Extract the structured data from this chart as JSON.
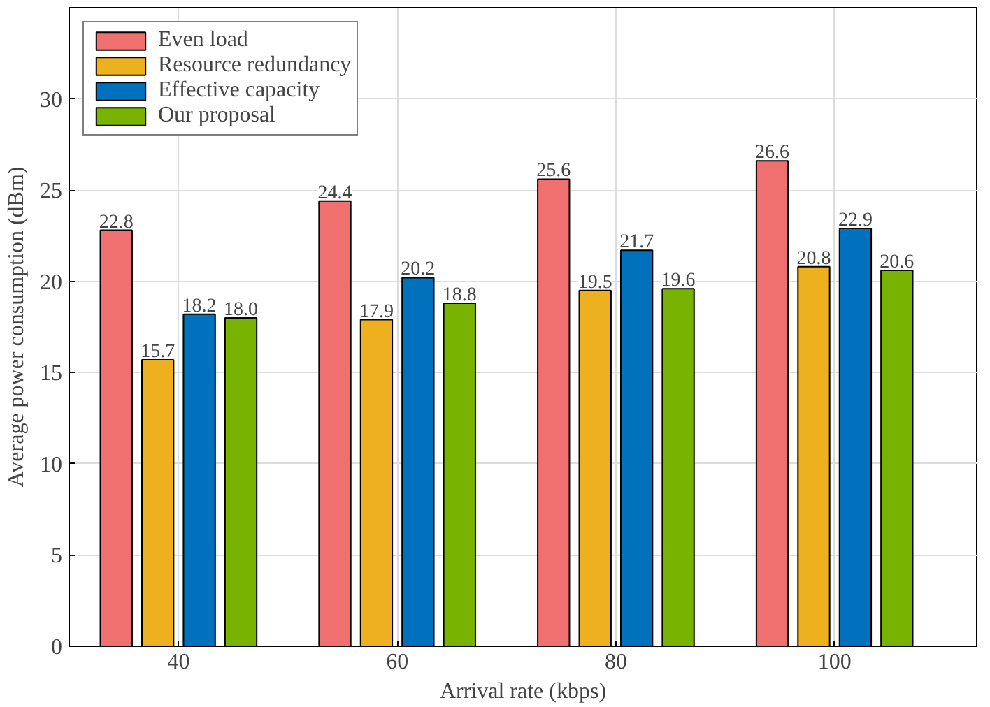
{
  "chart_data": {
    "type": "bar",
    "xlabel": "Arrival rate (kbps)",
    "ylabel": "Average power consumption (dBm)",
    "categories": [
      "40",
      "60",
      "80",
      "100"
    ],
    "series": [
      {
        "name": "Even load",
        "color": "#f07070",
        "values": [
          22.8,
          24.4,
          25.6,
          26.6
        ],
        "value_labels": [
          "22.8",
          "24.4",
          "25.6",
          "26.6"
        ]
      },
      {
        "name": "Resource redundancy",
        "color": "#edb120",
        "values": [
          15.7,
          17.9,
          19.5,
          20.8
        ],
        "value_labels": [
          "15.7",
          "17.9",
          "19.5",
          "20.8"
        ]
      },
      {
        "name": "Effective capacity",
        "color": "#0072bd",
        "values": [
          18.2,
          20.2,
          21.7,
          22.9
        ],
        "value_labels": [
          "18.2",
          "20.2",
          "21.7",
          "22.9"
        ]
      },
      {
        "name": "Our proposal",
        "color": "#77b300",
        "values": [
          18.0,
          18.8,
          19.6,
          20.6
        ],
        "value_labels": [
          "18.0",
          "18.8",
          "19.6",
          "20.6"
        ]
      }
    ],
    "ylim": [
      0,
      35
    ],
    "yticks": [
      0,
      5,
      10,
      15,
      20,
      25,
      30
    ],
    "grid": true,
    "legend": "top left"
  }
}
